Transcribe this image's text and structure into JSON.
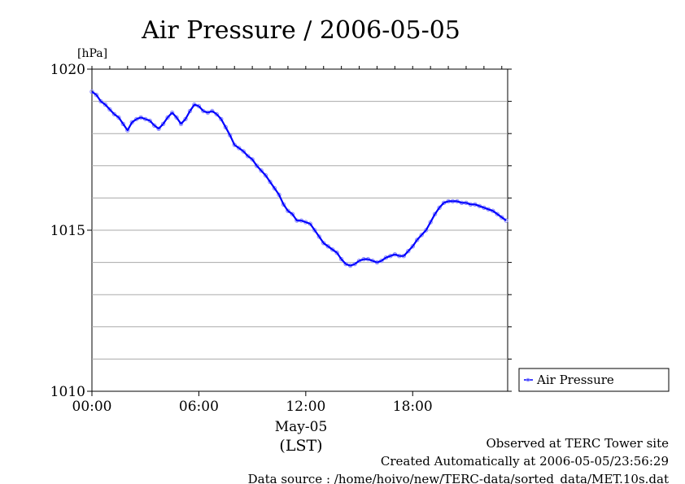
{
  "chart_data": {
    "type": "line",
    "title": "Air Pressure / 2006-05-05",
    "unit_label": "[hPa]",
    "xlabel_date": "May-05",
    "xlabel_zone": "(LST)",
    "x_ticks": [
      {
        "value": 0,
        "label": "00:00"
      },
      {
        "value": 6,
        "label": "06:00"
      },
      {
        "value": 12,
        "label": "12:00"
      },
      {
        "value": 18,
        "label": "18:00"
      }
    ],
    "y_ticks": [
      {
        "value": 1010,
        "label": "1010"
      },
      {
        "value": 1015,
        "label": "1015"
      },
      {
        "value": 1020,
        "label": "1020"
      }
    ],
    "xlim": [
      0,
      23.33
    ],
    "ylim": [
      1010,
      1020
    ],
    "grid": true,
    "legend_position": "right",
    "series": [
      {
        "name": "Air Pressure",
        "color": "#0000ff",
        "marker_color": "#8888ff",
        "x": [
          0.0,
          0.25,
          0.5,
          0.75,
          1.0,
          1.25,
          1.5,
          1.75,
          2.0,
          2.25,
          2.5,
          2.75,
          3.0,
          3.25,
          3.5,
          3.75,
          4.0,
          4.25,
          4.5,
          4.75,
          5.0,
          5.25,
          5.5,
          5.75,
          6.0,
          6.25,
          6.5,
          6.75,
          7.0,
          7.25,
          7.5,
          7.75,
          8.0,
          8.25,
          8.5,
          8.75,
          9.0,
          9.25,
          9.5,
          9.75,
          10.0,
          10.25,
          10.5,
          10.75,
          11.0,
          11.25,
          11.5,
          11.75,
          12.0,
          12.25,
          12.5,
          12.75,
          13.0,
          13.25,
          13.5,
          13.75,
          14.0,
          14.25,
          14.5,
          14.75,
          15.0,
          15.25,
          15.5,
          15.75,
          16.0,
          16.25,
          16.5,
          16.75,
          17.0,
          17.25,
          17.5,
          17.75,
          18.0,
          18.25,
          18.5,
          18.75,
          19.0,
          19.25,
          19.5,
          19.75,
          20.0,
          20.25,
          20.5,
          20.75,
          21.0,
          21.25,
          21.5,
          21.75,
          22.0,
          22.25,
          22.5,
          22.75,
          23.0,
          23.25
        ],
        "y": [
          1019.3,
          1019.2,
          1019.0,
          1018.9,
          1018.75,
          1018.6,
          1018.5,
          1018.3,
          1018.1,
          1018.35,
          1018.45,
          1018.5,
          1018.45,
          1018.4,
          1018.25,
          1018.15,
          1018.3,
          1018.5,
          1018.65,
          1018.5,
          1018.3,
          1018.45,
          1018.7,
          1018.9,
          1018.85,
          1018.7,
          1018.65,
          1018.7,
          1018.6,
          1018.45,
          1018.2,
          1017.95,
          1017.65,
          1017.55,
          1017.45,
          1017.3,
          1017.2,
          1017.0,
          1016.85,
          1016.7,
          1016.5,
          1016.3,
          1016.1,
          1015.8,
          1015.6,
          1015.5,
          1015.3,
          1015.3,
          1015.25,
          1015.2,
          1015.0,
          1014.8,
          1014.6,
          1014.5,
          1014.4,
          1014.3,
          1014.1,
          1013.95,
          1013.9,
          1013.95,
          1014.05,
          1014.1,
          1014.1,
          1014.05,
          1014.0,
          1014.05,
          1014.15,
          1014.2,
          1014.25,
          1014.2,
          1014.2,
          1014.35,
          1014.5,
          1014.7,
          1014.85,
          1015.0,
          1015.25,
          1015.5,
          1015.7,
          1015.85,
          1015.9,
          1015.9,
          1015.9,
          1015.85,
          1015.85,
          1015.8,
          1015.8,
          1015.75,
          1015.7,
          1015.65,
          1015.6,
          1015.5,
          1015.4,
          1015.3
        ]
      }
    ]
  },
  "footer": {
    "observed": "Observed at TERC Tower site",
    "created": "Created Automatically at 2006-05-05/23:56:29",
    "source": "Data source : /home/hoivo/new/TERC-data/sorted_data/MET.10s.dat"
  }
}
